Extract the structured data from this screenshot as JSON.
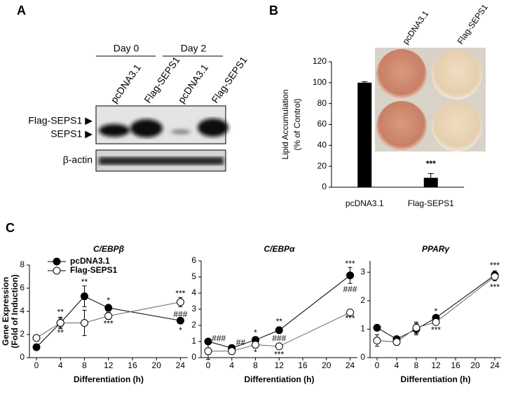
{
  "panel_labels": [
    "A",
    "B",
    "C"
  ],
  "blot": {
    "days": [
      "Day 0",
      "Day 2"
    ],
    "lanes": [
      "pcDNA3.1",
      "Flag-SEPS1",
      "pcDNA3.1",
      "Flag-SEPS1"
    ],
    "rows": [
      "Flag-SEPS1 ▶",
      "SEPS1 ▶",
      "β-actin"
    ]
  },
  "chart_data": [
    {
      "type": "bar",
      "categories": [
        "pcDNA3.1",
        "Flag-SEPS1"
      ],
      "values": [
        100,
        9
      ],
      "errors": [
        1,
        4
      ],
      "color": "#000000",
      "y_label": [
        "Lipid Accumulation",
        "(% of Control)"
      ],
      "ylim": [
        0,
        120
      ],
      "yticks": [
        0,
        20,
        40,
        60,
        80,
        100,
        120
      ],
      "annotations": [
        {
          "text": "***",
          "x": 1,
          "y": 22
        }
      ],
      "inset_labels": [
        "pcDNA3.1",
        "Flag-SEPS1"
      ]
    },
    {
      "type": "line",
      "title": "C/EBPβ",
      "x": [
        0,
        4,
        8,
        12,
        24
      ],
      "xlim": [
        0,
        25
      ],
      "xticks": [
        0,
        4,
        8,
        12,
        16,
        20,
        24
      ],
      "ylim": [
        0,
        8
      ],
      "yticks": [
        0,
        2,
        4,
        6,
        8
      ],
      "x_label": "Differentiation (h)",
      "y_label": [
        "Gene Expression",
        "(Fold of Induction)"
      ],
      "legend": true,
      "series": [
        {
          "name": "pcDNA3.1",
          "color": "#000000",
          "values": [
            0.9,
            3.0,
            5.3,
            4.3,
            3.2
          ],
          "errors": [
            0.1,
            0.4,
            0.9,
            0.3,
            0.1
          ]
        },
        {
          "name": "Flag-SEPS1",
          "color": "#ffffff",
          "values": [
            1.7,
            3.0,
            3.0,
            3.6,
            4.8
          ],
          "errors": [
            0.2,
            0.5,
            1.1,
            0.3,
            0.4
          ]
        }
      ],
      "annotations": [
        {
          "text": "**",
          "x": 4,
          "y": 3.9
        },
        {
          "text": "**",
          "x": 4,
          "y": 2.1
        },
        {
          "text": "**",
          "x": 8,
          "y": 6.5
        },
        {
          "text": "*",
          "x": 12,
          "y": 4.9
        },
        {
          "text": "***",
          "x": 12,
          "y": 2.9
        },
        {
          "text": "***",
          "x": 24,
          "y": 5.5
        },
        {
          "text": "###",
          "x": 24,
          "y": 3.7
        },
        {
          "text": "*",
          "x": 24,
          "y": 2.3
        }
      ]
    },
    {
      "type": "line",
      "title": "C/EBPα",
      "x": [
        0,
        4,
        8,
        12,
        24
      ],
      "xlim": [
        0,
        25
      ],
      "xticks": [
        0,
        4,
        8,
        12,
        16,
        20,
        24
      ],
      "ylim": [
        0,
        6
      ],
      "yticks": [
        0,
        1,
        2,
        3,
        4,
        5,
        6
      ],
      "x_label": "Differentiation (h)",
      "series": [
        {
          "color": "#000000",
          "values": [
            1.0,
            0.6,
            1.1,
            1.7,
            5.1
          ],
          "errors": [
            0.1,
            0.1,
            0.2,
            0.2,
            0.5
          ]
        },
        {
          "color": "#ffffff",
          "values": [
            0.4,
            0.4,
            0.8,
            0.7,
            2.8
          ],
          "errors": [
            0.5,
            0.1,
            0.2,
            0.1,
            0.1
          ]
        }
      ],
      "annotations": [
        {
          "text": "###",
          "x": 1.8,
          "y": 1.15
        },
        {
          "text": "##",
          "x": 5.5,
          "y": 0.9
        },
        {
          "text": "*",
          "x": 8,
          "y": 1.5
        },
        {
          "text": "*",
          "x": 8,
          "y": 0.3
        },
        {
          "text": "**",
          "x": 12,
          "y": 2.2
        },
        {
          "text": "###",
          "x": 12,
          "y": 1.15
        },
        {
          "text": "***",
          "x": 12,
          "y": 0.15
        },
        {
          "text": "***",
          "x": 24,
          "y": 5.8
        },
        {
          "text": "###",
          "x": 24,
          "y": 4.2
        },
        {
          "text": "***",
          "x": 24,
          "y": 2.4
        }
      ]
    },
    {
      "type": "line",
      "title": "PPARγ",
      "x": [
        0,
        4,
        8,
        12,
        24
      ],
      "xlim": [
        0,
        25
      ],
      "xticks": [
        0,
        4,
        8,
        12,
        16,
        20,
        24
      ],
      "ylim": [
        0,
        3.4
      ],
      "yticks": [
        0,
        1,
        2,
        3
      ],
      "x_label": "Differentiation (h)",
      "series": [
        {
          "color": "#000000",
          "values": [
            1.05,
            0.65,
            1.0,
            1.4,
            2.9
          ],
          "errors": [
            0.1,
            0.05,
            0.2,
            0.05,
            0.15
          ]
        },
        {
          "color": "#ffffff",
          "values": [
            0.6,
            0.55,
            1.05,
            1.25,
            2.85
          ],
          "errors": [
            0.2,
            0.05,
            0.2,
            0.05,
            0.15
          ]
        }
      ],
      "annotations": [
        {
          "text": "*",
          "x": 12,
          "y": 1.6
        },
        {
          "text": "***",
          "x": 12,
          "y": 0.95
        },
        {
          "text": "***",
          "x": 24,
          "y": 3.22
        },
        {
          "text": "***",
          "x": 24,
          "y": 2.45
        }
      ]
    }
  ]
}
